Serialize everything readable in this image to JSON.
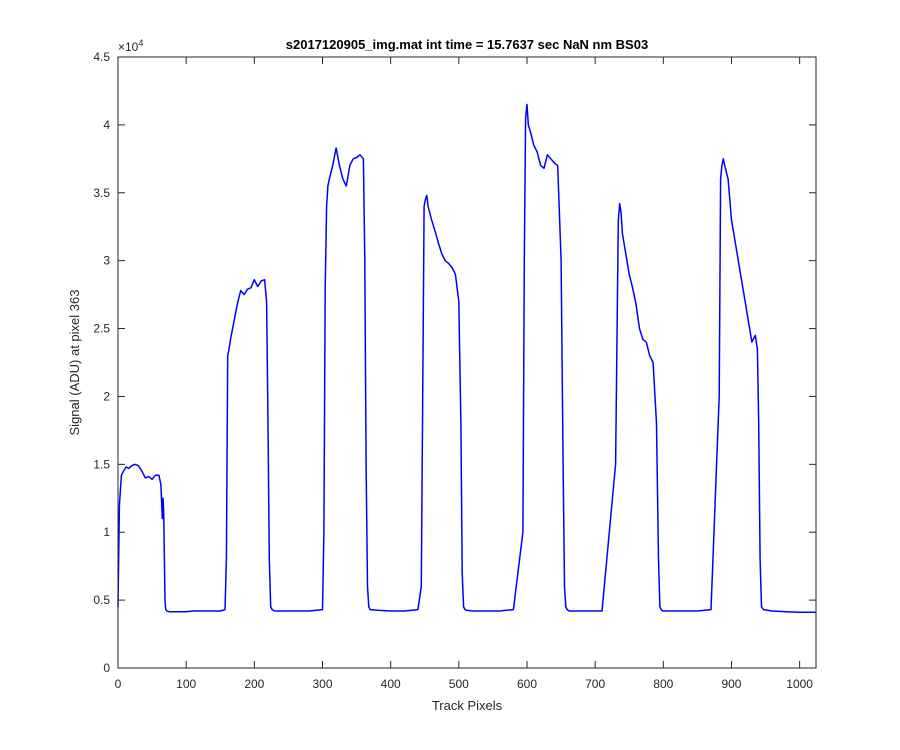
{
  "chart_data": {
    "type": "line",
    "title": "s2017120905_img.mat int time = 15.7637 sec  NaN nm BS03",
    "xlabel": "Track Pixels",
    "ylabel": "Signal (ADU) at pixel 363",
    "exponent_base": "×10",
    "exponent_power": "4",
    "xlim": [
      0,
      1024
    ],
    "ylim": [
      0,
      45000
    ],
    "xticks": [
      0,
      100,
      200,
      300,
      400,
      500,
      600,
      700,
      800,
      900,
      1000
    ],
    "xtick_labels": [
      "0",
      "100",
      "200",
      "300",
      "400",
      "500",
      "600",
      "700",
      "800",
      "900",
      "1000"
    ],
    "yticks": [
      0,
      5000,
      10000,
      15000,
      20000,
      25000,
      30000,
      35000,
      40000,
      45000
    ],
    "ytick_labels": [
      "0",
      "0.5",
      "1",
      "1.5",
      "2",
      "2.5",
      "3",
      "3.5",
      "4",
      "4.5"
    ],
    "grid": false,
    "line_color": "#0000ff",
    "series": [
      {
        "x": [
          0,
          2,
          5,
          8,
          12,
          16,
          20,
          25,
          30,
          35,
          40,
          45,
          50,
          55,
          60,
          63,
          65,
          66,
          67,
          68,
          69,
          70,
          72,
          75,
          80,
          90,
          100,
          110,
          120,
          130,
          140,
          150,
          157,
          159,
          161,
          163,
          165,
          170,
          175,
          180,
          185,
          190,
          195,
          200,
          205,
          210,
          215,
          218,
          220,
          222,
          224,
          226,
          230,
          240,
          260,
          280,
          300,
          302,
          304,
          306,
          308,
          310,
          315,
          320,
          325,
          330,
          335,
          340,
          345,
          350,
          355,
          360,
          362,
          364,
          366,
          368,
          370,
          380,
          400,
          420,
          440,
          445,
          447,
          449,
          451,
          453,
          455,
          460,
          465,
          470,
          475,
          480,
          485,
          490,
          495,
          500,
          503,
          505,
          507,
          509,
          512,
          520,
          540,
          560,
          580,
          594,
          596,
          598,
          600,
          602,
          605,
          610,
          615,
          620,
          625,
          630,
          635,
          640,
          645,
          650,
          653,
          655,
          657,
          659,
          662,
          670,
          690,
          710,
          730,
          734,
          736,
          738,
          740,
          745,
          750,
          755,
          760,
          765,
          770,
          775,
          780,
          785,
          790,
          793,
          795,
          797,
          799,
          802,
          810,
          830,
          850,
          870,
          882,
          884,
          886,
          888,
          890,
          895,
          900,
          905,
          910,
          915,
          920,
          925,
          930,
          935,
          938,
          940,
          942,
          944,
          947,
          960,
          980,
          1000,
          1024
        ],
        "y": [
          4500,
          12000,
          14200,
          14500,
          14800,
          14700,
          14900,
          15000,
          14900,
          14500,
          14000,
          14100,
          13900,
          14200,
          14200,
          13500,
          11000,
          12500,
          11500,
          8000,
          5000,
          4300,
          4200,
          4150,
          4150,
          4150,
          4150,
          4200,
          4200,
          4200,
          4200,
          4200,
          4300,
          8000,
          23000,
          23500,
          24200,
          25500,
          26800,
          27800,
          27500,
          27900,
          28000,
          28600,
          28100,
          28500,
          28600,
          27000,
          18000,
          8000,
          4500,
          4300,
          4200,
          4200,
          4200,
          4200,
          4300,
          10000,
          28000,
          34000,
          35500,
          36000,
          37000,
          38300,
          37000,
          36000,
          35500,
          37000,
          37500,
          37600,
          37800,
          37500,
          30000,
          15000,
          6000,
          4500,
          4300,
          4250,
          4200,
          4200,
          4300,
          6000,
          20000,
          34000,
          34500,
          34800,
          34000,
          33000,
          32200,
          31300,
          30500,
          30000,
          29800,
          29500,
          29000,
          27000,
          18000,
          7000,
          4500,
          4300,
          4250,
          4200,
          4200,
          4200,
          4300,
          10000,
          30000,
          40500,
          41500,
          40000,
          39500,
          38500,
          38000,
          37000,
          36800,
          37800,
          37500,
          37200,
          37000,
          30000,
          15000,
          6000,
          4500,
          4300,
          4200,
          4200,
          4200,
          4200,
          15000,
          33000,
          34200,
          33500,
          32000,
          30500,
          29000,
          28000,
          26800,
          25000,
          24200,
          24000,
          23000,
          22500,
          18000,
          8000,
          4500,
          4300,
          4200,
          4200,
          4200,
          4200,
          4200,
          4300,
          20000,
          36000,
          37000,
          37500,
          37000,
          36000,
          33000,
          31500,
          30000,
          28500,
          27000,
          25500,
          24000,
          24500,
          23500,
          18000,
          8000,
          4500,
          4300,
          4200,
          4150,
          4100,
          4100
        ]
      }
    ]
  }
}
